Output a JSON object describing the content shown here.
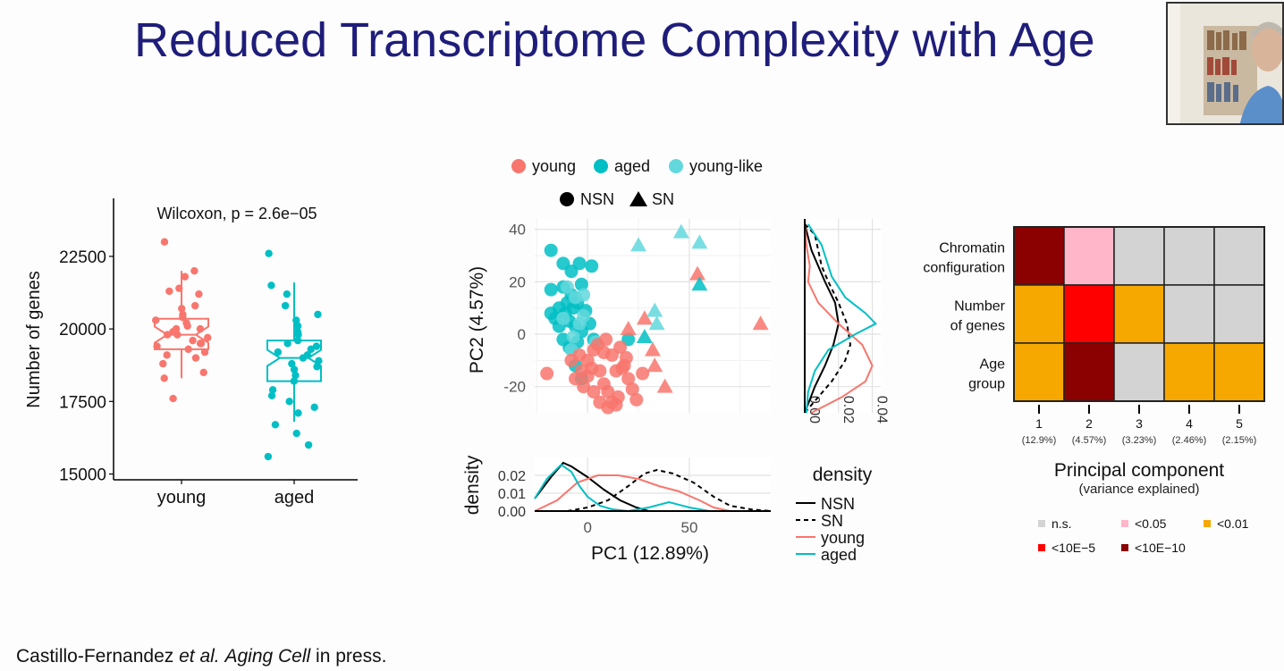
{
  "slide": {
    "title": "Reduced Transcriptome Complexity with Age",
    "citation_authors": "Castillo-Fernandez ",
    "citation_etal": "et al.",
    "citation_journal": "Aging Cell",
    "citation_rest": " in press."
  },
  "chart_data": [
    {
      "type": "box",
      "title": "Wilcoxon, p = 2.6e−05",
      "ylabel": "Number of genes",
      "xlabel": "",
      "categories": [
        "young",
        "aged"
      ],
      "ylim": [
        14800,
        24500
      ],
      "yticks": [
        15000,
        17500,
        20000,
        22500
      ],
      "colors": [
        "#f8766d",
        "#00bfc4"
      ],
      "boxes": [
        {
          "name": "young",
          "min": 18300,
          "q1": 19300,
          "median": 19800,
          "q3": 20350,
          "max": 22000
        },
        {
          "name": "aged",
          "min": 16800,
          "q1": 18200,
          "median": 19000,
          "q3": 19600,
          "max": 21600
        }
      ],
      "points": {
        "young": [
          23000,
          22000,
          21800,
          21400,
          21300,
          21200,
          20800,
          20700,
          20500,
          20400,
          20300,
          20200,
          20100,
          20000,
          20000,
          19900,
          19800,
          19800,
          19700,
          19600,
          19500,
          19500,
          19400,
          19300,
          19200,
          19100,
          19000,
          18800,
          18500,
          18300,
          17600
        ],
        "aged": [
          22600,
          21500,
          21200,
          20800,
          20500,
          20300,
          20100,
          19900,
          19800,
          19600,
          19500,
          19400,
          19300,
          19200,
          19100,
          19000,
          18900,
          18800,
          18700,
          18600,
          18400,
          18200,
          17900,
          17700,
          17500,
          17300,
          17100,
          16700,
          16400,
          16000,
          15600
        ]
      }
    },
    {
      "type": "scatter",
      "xlabel": "PC1 (12.89%)",
      "ylabel": "PC2 (4.57%)",
      "xlim": [
        -26,
        90
      ],
      "ylim": [
        -30,
        44
      ],
      "xticks": [
        0,
        50
      ],
      "yticks": [
        -20,
        0,
        20,
        40
      ],
      "legend_color": [
        {
          "label": "young",
          "color": "#f8766d"
        },
        {
          "label": "aged",
          "color": "#00bfc4"
        },
        {
          "label": "young-like",
          "color": "#62d8dc"
        }
      ],
      "legend_shape": [
        {
          "label": "NSN",
          "shape": "circle"
        },
        {
          "label": "SN",
          "shape": "triangle"
        }
      ],
      "series": [
        {
          "name": "aged",
          "shape": "circle",
          "points": [
            [
              -18,
              32
            ],
            [
              -12,
              27
            ],
            [
              -8,
              24
            ],
            [
              -4,
              27
            ],
            [
              2,
              26
            ],
            [
              -18,
              17
            ],
            [
              -12,
              18
            ],
            [
              -8,
              15
            ],
            [
              -3,
              19
            ],
            [
              -14,
              10
            ],
            [
              -11,
              8
            ],
            [
              -7,
              10
            ],
            [
              -5,
              12
            ],
            [
              -1,
              9
            ],
            [
              -18,
              8
            ],
            [
              -16,
              6
            ],
            [
              -9,
              5
            ],
            [
              -6,
              3
            ],
            [
              -3,
              1
            ],
            [
              1,
              4
            ],
            [
              -12,
              -2
            ],
            [
              -9,
              -5
            ],
            [
              -5,
              -3
            ],
            [
              3,
              -2
            ],
            [
              -6,
              -12
            ],
            [
              -3,
              -17
            ],
            [
              20,
              -2
            ],
            [
              -10,
              12
            ],
            [
              -14,
              3
            ]
          ]
        },
        {
          "name": "young-like",
          "shape": "circle",
          "points": [
            [
              -10,
              18
            ],
            [
              -6,
              14
            ],
            [
              -2,
              15
            ],
            [
              -12,
              6
            ],
            [
              -8,
              -6
            ],
            [
              4,
              -3
            ],
            [
              -4,
              4
            ],
            [
              -7,
              -1
            ],
            [
              -2,
              7
            ]
          ]
        },
        {
          "name": "young",
          "shape": "circle",
          "points": [
            [
              -20,
              -15
            ],
            [
              -8,
              -10
            ],
            [
              -4,
              -8
            ],
            [
              0,
              -10
            ],
            [
              3,
              -6
            ],
            [
              6,
              -14
            ],
            [
              8,
              -19
            ],
            [
              10,
              -22
            ],
            [
              12,
              -26
            ],
            [
              15,
              -24
            ],
            [
              17,
              -13
            ],
            [
              19,
              -9
            ],
            [
              20,
              -17
            ],
            [
              22,
              -21
            ],
            [
              24,
              -25
            ],
            [
              27,
              -15
            ],
            [
              10,
              -28
            ],
            [
              14,
              -27
            ],
            [
              6,
              -26
            ],
            [
              3,
              -22
            ],
            [
              0,
              -16
            ],
            [
              -3,
              -14
            ],
            [
              -6,
              -17
            ],
            [
              -2,
              -20
            ],
            [
              2,
              -13
            ],
            [
              5,
              -4
            ],
            [
              9,
              -2
            ],
            [
              12,
              -8
            ],
            [
              16,
              -5
            ],
            [
              18,
              -12
            ],
            [
              14,
              -14
            ],
            [
              8,
              -7
            ]
          ]
        },
        {
          "name": "young",
          "shape": "triangle",
          "points": [
            [
              20,
              2
            ],
            [
              28,
              6
            ],
            [
              32,
              -6
            ],
            [
              33,
              -12
            ],
            [
              38,
              -20
            ],
            [
              54,
              23
            ],
            [
              85,
              4
            ]
          ]
        },
        {
          "name": "aged",
          "shape": "triangle",
          "points": [
            [
              28,
              -1
            ],
            [
              55,
              19
            ]
          ]
        },
        {
          "name": "young-like",
          "shape": "triangle",
          "points": [
            [
              25,
              34
            ],
            [
              33,
              9
            ],
            [
              34,
              4
            ],
            [
              46,
              39
            ],
            [
              55,
              35
            ]
          ]
        }
      ]
    },
    {
      "type": "line",
      "title": "",
      "xlabel": "",
      "ylabel": "density",
      "xlim": [
        -26,
        90
      ],
      "ylim": [
        0,
        0.03
      ],
      "yticks": [
        0.0,
        0.01,
        0.02
      ],
      "ytick_labels": [
        "0.00",
        "0.01",
        "0.02"
      ],
      "series": [
        {
          "name": "NSN",
          "style": "solid",
          "color": "#000000",
          "x": [
            -26,
            -18,
            -12,
            -8,
            0,
            8,
            16,
            24,
            30
          ],
          "y": [
            0.007,
            0.019,
            0.027,
            0.025,
            0.019,
            0.012,
            0.006,
            0.002,
            0.0
          ]
        },
        {
          "name": "SN",
          "style": "dashed",
          "color": "#000000",
          "x": [
            -10,
            0,
            10,
            20,
            28,
            34,
            42,
            52,
            62,
            70,
            80,
            90
          ],
          "y": [
            0.0,
            0.002,
            0.006,
            0.014,
            0.021,
            0.023,
            0.021,
            0.016,
            0.008,
            0.003,
            0.001,
            0.0
          ]
        },
        {
          "name": "young",
          "style": "solid",
          "color": "#f8766d",
          "x": [
            -26,
            -15,
            -5,
            5,
            15,
            25,
            35,
            45,
            55,
            62,
            70
          ],
          "y": [
            0.0,
            0.006,
            0.016,
            0.02,
            0.02,
            0.018,
            0.014,
            0.011,
            0.006,
            0.002,
            0.0
          ]
        },
        {
          "name": "aged",
          "style": "solid",
          "color": "#00bfc4",
          "x": [
            -26,
            -20,
            -13,
            -8,
            -4,
            0,
            6,
            12,
            20,
            30,
            40,
            50,
            60
          ],
          "y": [
            0.007,
            0.018,
            0.026,
            0.022,
            0.014,
            0.008,
            0.003,
            0.001,
            0.0,
            0.002,
            0.005,
            0.002,
            0.0
          ]
        }
      ]
    },
    {
      "type": "line",
      "title": "",
      "xlabel": "density",
      "ylabel": "",
      "orientation": "vertical",
      "xlim": [
        0,
        0.045
      ],
      "ylim": [
        -30,
        44
      ],
      "xticks": [
        0.0,
        0.02,
        0.04
      ],
      "xtick_labels": [
        "0.00",
        "0.02",
        "0.04"
      ],
      "series": [
        {
          "name": "NSN",
          "style": "solid",
          "color": "#000000",
          "x": [
            0,
            0.002,
            0.004,
            0.008,
            0.012,
            0.018,
            0.02,
            0.017,
            0.012,
            0.006,
            0.003,
            0
          ],
          "y": [
            42,
            37,
            32,
            26,
            20,
            12,
            4,
            -4,
            -12,
            -20,
            -25,
            -30
          ]
        },
        {
          "name": "SN",
          "style": "dashed",
          "color": "#000000",
          "x": [
            0,
            0.006,
            0.008,
            0.01,
            0.014,
            0.02,
            0.025,
            0.027,
            0.024,
            0.016,
            0.008,
            0.0
          ],
          "y": [
            42,
            38,
            32,
            26,
            20,
            12,
            4,
            -4,
            -10,
            -18,
            -24,
            -30
          ]
        },
        {
          "name": "young",
          "style": "solid",
          "color": "#f8766d",
          "x": [
            0,
            0.001,
            0.003,
            0.002,
            0.008,
            0.02,
            0.034,
            0.04,
            0.036,
            0.022,
            0.01,
            0.004
          ],
          "y": [
            42,
            34,
            26,
            20,
            12,
            4,
            -4,
            -12,
            -18,
            -24,
            -28,
            -30
          ]
        },
        {
          "name": "aged",
          "style": "solid",
          "color": "#00bfc4",
          "x": [
            0.002,
            0.01,
            0.012,
            0.016,
            0.024,
            0.036,
            0.042,
            0.03,
            0.014,
            0.006,
            0.002,
            0.001
          ],
          "y": [
            42,
            34,
            30,
            22,
            14,
            8,
            4,
            0,
            -6,
            -14,
            -22,
            -30
          ]
        }
      ],
      "legend": [
        {
          "label": "NSN",
          "style": "solid",
          "color": "#000000"
        },
        {
          "label": "SN",
          "style": "dashed",
          "color": "#000000"
        },
        {
          "label": "young",
          "style": "solid",
          "color": "#f8766d"
        },
        {
          "label": "aged",
          "style": "solid",
          "color": "#00bfc4"
        }
      ]
    },
    {
      "type": "heatmap",
      "xlabel": "Principal component",
      "xlabel_sub": "(variance explained)",
      "rows": [
        [
          "Chromatin",
          "configuration"
        ],
        [
          "Number",
          "of genes"
        ],
        [
          "Age",
          "group"
        ]
      ],
      "columns": [
        "1",
        "2",
        "3",
        "4",
        "5"
      ],
      "column_sub": [
        "(12.9%)",
        "(4.57%)",
        "(3.23%)",
        "(2.46%)",
        "(2.15%)"
      ],
      "values": [
        [
          "<10E−10",
          "<0.05",
          "n.s.",
          "n.s.",
          "n.s."
        ],
        [
          "<0.01",
          "<10E−5",
          "<0.01",
          "n.s.",
          "n.s."
        ],
        [
          "<0.01",
          "<10E−10",
          "n.s.",
          "<0.01",
          "<0.01"
        ]
      ],
      "legend": [
        {
          "label": "n.s.",
          "color": "#d3d3d3"
        },
        {
          "label": "<0.05",
          "color": "#ffb6c8"
        },
        {
          "label": "<0.01",
          "color": "#f6a800"
        },
        {
          "label": "<10E−5",
          "color": "#ff0000"
        },
        {
          "label": "<10E−10",
          "color": "#8b0000"
        }
      ]
    }
  ]
}
